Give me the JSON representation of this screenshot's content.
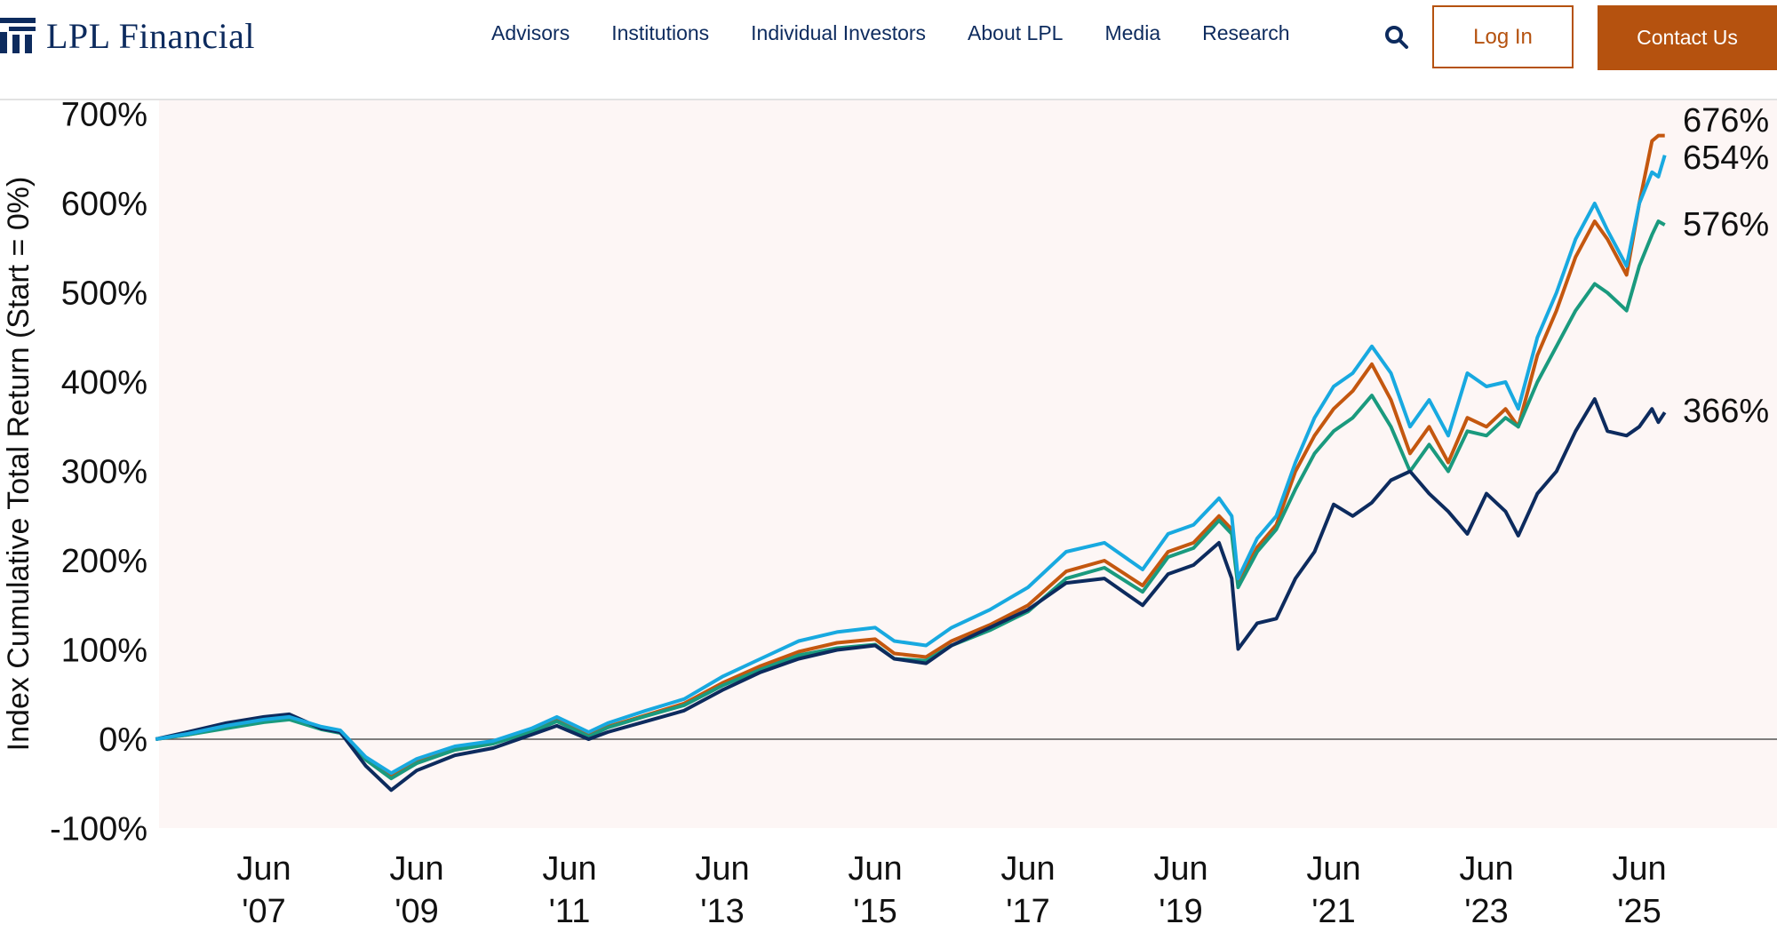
{
  "header": {
    "logo_text": "LPL Financial",
    "nav": [
      "Advisors",
      "Institutions",
      "Individual Investors",
      "About LPL",
      "Media",
      "Research"
    ],
    "search_icon": "search-icon",
    "login_label": "Log In",
    "contact_label": "Contact Us",
    "brand_color": "#b5520f",
    "navy_color": "#0d2b5e"
  },
  "chart_data": {
    "type": "line",
    "title": "",
    "ylabel": "Index Cumulative Total Return (Start = 0%)",
    "xlabel": "",
    "ylim": [
      -100,
      700
    ],
    "yticks": [
      "700%",
      "600%",
      "500%",
      "400%",
      "300%",
      "200%",
      "100%",
      "0%",
      "-100%"
    ],
    "yvalues": [
      700,
      600,
      500,
      400,
      300,
      200,
      100,
      0,
      -100
    ],
    "xticks": [
      {
        "date": "2007-06",
        "line1": "Jun",
        "line2": "'07"
      },
      {
        "date": "2009-06",
        "line1": "Jun",
        "line2": "'09"
      },
      {
        "date": "2011-06",
        "line1": "Jun",
        "line2": "'11"
      },
      {
        "date": "2013-06",
        "line1": "Jun",
        "line2": "'13"
      },
      {
        "date": "2015-06",
        "line1": "Jun",
        "line2": "'15"
      },
      {
        "date": "2017-06",
        "line1": "Jun",
        "line2": "'17"
      },
      {
        "date": "2019-06",
        "line1": "Jun",
        "line2": "'19"
      },
      {
        "date": "2021-06",
        "line1": "Jun",
        "line2": "'21"
      },
      {
        "date": "2023-06",
        "line1": "Jun",
        "line2": "'23"
      },
      {
        "date": "2025-06",
        "line1": "Jun",
        "line2": "'25"
      }
    ],
    "xlim": [
      "2006-01",
      "2025-10"
    ],
    "grid": false,
    "zero_line": true,
    "background": "#fdf6f5",
    "series": [
      {
        "color": "#c4570f",
        "end_label": "676%",
        "points": [
          [
            "2006-01",
            0
          ],
          [
            "2006-06",
            5
          ],
          [
            "2006-12",
            13
          ],
          [
            "2007-06",
            20
          ],
          [
            "2007-10",
            23
          ],
          [
            "2008-03",
            12
          ],
          [
            "2008-06",
            8
          ],
          [
            "2008-10",
            -22
          ],
          [
            "2009-02",
            -42
          ],
          [
            "2009-06",
            -25
          ],
          [
            "2009-12",
            -10
          ],
          [
            "2010-06",
            -4
          ],
          [
            "2010-12",
            9
          ],
          [
            "2011-04",
            21
          ],
          [
            "2011-09",
            4
          ],
          [
            "2011-12",
            14
          ],
          [
            "2012-06",
            27
          ],
          [
            "2012-12",
            40
          ],
          [
            "2013-06",
            63
          ],
          [
            "2013-12",
            82
          ],
          [
            "2014-06",
            98
          ],
          [
            "2014-12",
            108
          ],
          [
            "2015-06",
            112
          ],
          [
            "2015-09",
            96
          ],
          [
            "2016-02",
            92
          ],
          [
            "2016-06",
            110
          ],
          [
            "2016-12",
            128
          ],
          [
            "2017-06",
            150
          ],
          [
            "2017-12",
            188
          ],
          [
            "2018-06",
            200
          ],
          [
            "2018-12",
            172
          ],
          [
            "2019-04",
            210
          ],
          [
            "2019-08",
            220
          ],
          [
            "2019-12",
            250
          ],
          [
            "2020-02",
            235
          ],
          [
            "2020-03",
            175
          ],
          [
            "2020-06",
            215
          ],
          [
            "2020-09",
            240
          ],
          [
            "2020-12",
            300
          ],
          [
            "2021-03",
            340
          ],
          [
            "2021-06",
            370
          ],
          [
            "2021-09",
            390
          ],
          [
            "2021-12",
            420
          ],
          [
            "2022-03",
            380
          ],
          [
            "2022-06",
            320
          ],
          [
            "2022-09",
            350
          ],
          [
            "2022-12",
            310
          ],
          [
            "2023-03",
            360
          ],
          [
            "2023-06",
            350
          ],
          [
            "2023-09",
            370
          ],
          [
            "2023-11",
            350
          ],
          [
            "2024-02",
            430
          ],
          [
            "2024-05",
            480
          ],
          [
            "2024-08",
            540
          ],
          [
            "2024-11",
            580
          ],
          [
            "2025-01",
            560
          ],
          [
            "2025-04",
            520
          ],
          [
            "2025-06",
            600
          ],
          [
            "2025-08",
            670
          ],
          [
            "2025-09",
            676
          ],
          [
            "2025-10",
            676
          ]
        ]
      },
      {
        "color": "#18a9e0",
        "end_label": "654%",
        "points": [
          [
            "2006-01",
            0
          ],
          [
            "2006-06",
            6
          ],
          [
            "2006-12",
            15
          ],
          [
            "2007-06",
            22
          ],
          [
            "2007-10",
            25
          ],
          [
            "2008-03",
            14
          ],
          [
            "2008-06",
            10
          ],
          [
            "2008-10",
            -20
          ],
          [
            "2009-02",
            -38
          ],
          [
            "2009-06",
            -22
          ],
          [
            "2009-12",
            -8
          ],
          [
            "2010-06",
            -2
          ],
          [
            "2010-12",
            12
          ],
          [
            "2011-04",
            25
          ],
          [
            "2011-09",
            8
          ],
          [
            "2011-12",
            18
          ],
          [
            "2012-06",
            32
          ],
          [
            "2012-12",
            45
          ],
          [
            "2013-06",
            70
          ],
          [
            "2013-12",
            90
          ],
          [
            "2014-06",
            110
          ],
          [
            "2014-12",
            120
          ],
          [
            "2015-06",
            125
          ],
          [
            "2015-09",
            110
          ],
          [
            "2016-02",
            105
          ],
          [
            "2016-06",
            125
          ],
          [
            "2016-12",
            145
          ],
          [
            "2017-06",
            170
          ],
          [
            "2017-12",
            210
          ],
          [
            "2018-06",
            220
          ],
          [
            "2018-12",
            190
          ],
          [
            "2019-04",
            230
          ],
          [
            "2019-08",
            240
          ],
          [
            "2019-12",
            270
          ],
          [
            "2020-02",
            250
          ],
          [
            "2020-03",
            180
          ],
          [
            "2020-06",
            225
          ],
          [
            "2020-09",
            250
          ],
          [
            "2020-12",
            310
          ],
          [
            "2021-03",
            360
          ],
          [
            "2021-06",
            395
          ],
          [
            "2021-09",
            410
          ],
          [
            "2021-12",
            440
          ],
          [
            "2022-03",
            410
          ],
          [
            "2022-06",
            350
          ],
          [
            "2022-09",
            380
          ],
          [
            "2022-12",
            340
          ],
          [
            "2023-03",
            410
          ],
          [
            "2023-06",
            395
          ],
          [
            "2023-09",
            400
          ],
          [
            "2023-11",
            370
          ],
          [
            "2024-02",
            450
          ],
          [
            "2024-05",
            500
          ],
          [
            "2024-08",
            560
          ],
          [
            "2024-11",
            600
          ],
          [
            "2025-01",
            570
          ],
          [
            "2025-04",
            530
          ],
          [
            "2025-06",
            600
          ],
          [
            "2025-08",
            635
          ],
          [
            "2025-09",
            630
          ],
          [
            "2025-10",
            654
          ]
        ]
      },
      {
        "color": "#1a9a7e",
        "end_label": "576%",
        "points": [
          [
            "2006-01",
            0
          ],
          [
            "2006-06",
            5
          ],
          [
            "2006-12",
            12
          ],
          [
            "2007-06",
            19
          ],
          [
            "2007-10",
            22
          ],
          [
            "2008-03",
            11
          ],
          [
            "2008-06",
            7
          ],
          [
            "2008-10",
            -23
          ],
          [
            "2009-02",
            -44
          ],
          [
            "2009-06",
            -27
          ],
          [
            "2009-12",
            -12
          ],
          [
            "2010-06",
            -5
          ],
          [
            "2010-12",
            8
          ],
          [
            "2011-04",
            20
          ],
          [
            "2011-09",
            3
          ],
          [
            "2011-12",
            13
          ],
          [
            "2012-06",
            26
          ],
          [
            "2012-12",
            38
          ],
          [
            "2013-06",
            60
          ],
          [
            "2013-12",
            78
          ],
          [
            "2014-06",
            94
          ],
          [
            "2014-12",
            102
          ],
          [
            "2015-06",
            106
          ],
          [
            "2015-09",
            90
          ],
          [
            "2016-02",
            88
          ],
          [
            "2016-06",
            105
          ],
          [
            "2016-12",
            122
          ],
          [
            "2017-06",
            143
          ],
          [
            "2017-12",
            180
          ],
          [
            "2018-06",
            192
          ],
          [
            "2018-12",
            165
          ],
          [
            "2019-04",
            204
          ],
          [
            "2019-08",
            214
          ],
          [
            "2019-12",
            245
          ],
          [
            "2020-02",
            230
          ],
          [
            "2020-03",
            170
          ],
          [
            "2020-06",
            210
          ],
          [
            "2020-09",
            235
          ],
          [
            "2020-12",
            280
          ],
          [
            "2021-03",
            320
          ],
          [
            "2021-06",
            345
          ],
          [
            "2021-09",
            360
          ],
          [
            "2021-12",
            385
          ],
          [
            "2022-03",
            350
          ],
          [
            "2022-06",
            300
          ],
          [
            "2022-09",
            330
          ],
          [
            "2022-12",
            300
          ],
          [
            "2023-03",
            345
          ],
          [
            "2023-06",
            340
          ],
          [
            "2023-09",
            360
          ],
          [
            "2023-11",
            350
          ],
          [
            "2024-02",
            400
          ],
          [
            "2024-05",
            440
          ],
          [
            "2024-08",
            480
          ],
          [
            "2024-11",
            510
          ],
          [
            "2025-01",
            500
          ],
          [
            "2025-04",
            480
          ],
          [
            "2025-06",
            530
          ],
          [
            "2025-08",
            565
          ],
          [
            "2025-09",
            580
          ],
          [
            "2025-10",
            576
          ]
        ]
      },
      {
        "color": "#0d2b5e",
        "end_label": "366%",
        "points": [
          [
            "2006-01",
            0
          ],
          [
            "2006-06",
            8
          ],
          [
            "2006-12",
            18
          ],
          [
            "2007-06",
            25
          ],
          [
            "2007-10",
            28
          ],
          [
            "2008-03",
            12
          ],
          [
            "2008-06",
            8
          ],
          [
            "2008-10",
            -30
          ],
          [
            "2009-02",
            -57
          ],
          [
            "2009-06",
            -35
          ],
          [
            "2009-12",
            -18
          ],
          [
            "2010-06",
            -10
          ],
          [
            "2010-12",
            5
          ],
          [
            "2011-04",
            15
          ],
          [
            "2011-09",
            0
          ],
          [
            "2011-12",
            8
          ],
          [
            "2012-06",
            20
          ],
          [
            "2012-12",
            32
          ],
          [
            "2013-06",
            55
          ],
          [
            "2013-12",
            75
          ],
          [
            "2014-06",
            90
          ],
          [
            "2014-12",
            100
          ],
          [
            "2015-06",
            105
          ],
          [
            "2015-09",
            90
          ],
          [
            "2016-02",
            85
          ],
          [
            "2016-06",
            105
          ],
          [
            "2016-12",
            125
          ],
          [
            "2017-06",
            145
          ],
          [
            "2017-12",
            175
          ],
          [
            "2018-06",
            180
          ],
          [
            "2018-12",
            150
          ],
          [
            "2019-04",
            185
          ],
          [
            "2019-08",
            195
          ],
          [
            "2019-12",
            220
          ],
          [
            "2020-02",
            180
          ],
          [
            "2020-03",
            101
          ],
          [
            "2020-06",
            130
          ],
          [
            "2020-09",
            135
          ],
          [
            "2020-12",
            180
          ],
          [
            "2021-03",
            210
          ],
          [
            "2021-06",
            263
          ],
          [
            "2021-09",
            250
          ],
          [
            "2021-12",
            265
          ],
          [
            "2022-03",
            290
          ],
          [
            "2022-06",
            300
          ],
          [
            "2022-09",
            275
          ],
          [
            "2022-12",
            255
          ],
          [
            "2023-03",
            230
          ],
          [
            "2023-06",
            275
          ],
          [
            "2023-09",
            255
          ],
          [
            "2023-11",
            228
          ],
          [
            "2024-02",
            275
          ],
          [
            "2024-05",
            300
          ],
          [
            "2024-08",
            345
          ],
          [
            "2024-11",
            381
          ],
          [
            "2025-01",
            345
          ],
          [
            "2025-04",
            340
          ],
          [
            "2025-06",
            350
          ],
          [
            "2025-08",
            370
          ],
          [
            "2025-09",
            355
          ],
          [
            "2025-10",
            366
          ]
        ]
      }
    ]
  }
}
